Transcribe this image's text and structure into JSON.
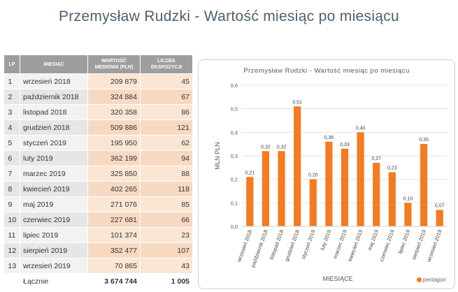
{
  "title": "Przemysław Rudzki - Wartość miesiąc po miesiącu",
  "table": {
    "headers": {
      "lp": "LP",
      "month": "MIESIĄC",
      "value": "WARTOŚĆ MEDIOWA (PLN)",
      "exposures": "LICZBA EKSPOZYCJI"
    },
    "rows": [
      {
        "lp": "1",
        "month": "wrzesień 2018",
        "value": "209 879",
        "exposures": "45"
      },
      {
        "lp": "2",
        "month": "październik 2018",
        "value": "324 884",
        "exposures": "67"
      },
      {
        "lp": "3",
        "month": "listopad 2018",
        "value": "320 358",
        "exposures": "86"
      },
      {
        "lp": "4",
        "month": "grudzień 2018",
        "value": "509 886",
        "exposures": "121"
      },
      {
        "lp": "5",
        "month": "styczeń 2019",
        "value": "195 950",
        "exposures": "62"
      },
      {
        "lp": "6",
        "month": "luty 2019",
        "value": "362 199",
        "exposures": "94"
      },
      {
        "lp": "7",
        "month": "marzec 2019",
        "value": "325 850",
        "exposures": "88"
      },
      {
        "lp": "8",
        "month": "kwiecień 2019",
        "value": "402 265",
        "exposures": "118"
      },
      {
        "lp": "9",
        "month": "maj 2019",
        "value": "271 076",
        "exposures": "85"
      },
      {
        "lp": "10",
        "month": "czerwiec 2019",
        "value": "227 681",
        "exposures": "66"
      },
      {
        "lp": "11",
        "month": "lipiec 2019",
        "value": "101 374",
        "exposures": "23"
      },
      {
        "lp": "12",
        "month": "sierpień 2019",
        "value": "352 477",
        "exposures": "107"
      },
      {
        "lp": "13",
        "month": "wrzesień 2019",
        "value": "70 865",
        "exposures": "43"
      }
    ],
    "total": {
      "label": "Łącznie",
      "value": "3 674 744",
      "exposures": "1 005"
    }
  },
  "chart_data": {
    "type": "bar",
    "title": "Przemysław Rudzki - Wartość miesiąc po miesiącu",
    "xlabel": "MIESIĄCE",
    "ylabel": "MLN PLN",
    "ylim": [
      0,
      0.6
    ],
    "yticks": [
      "0,0",
      "0,1",
      "0,2",
      "0,3",
      "0,4",
      "0,5",
      "0,6"
    ],
    "grid": true,
    "bar_color": "#f47b20",
    "categories": [
      "wrzesień 2018",
      "październik 2018",
      "listopad 2018",
      "grudzień 2018",
      "styczeń 2019",
      "luty 2019",
      "marzec 2019",
      "kwiecień 2019",
      "maj 2019",
      "czerwiec 2019",
      "lipiec 2019",
      "sierpień 2019",
      "wrzesień 2019"
    ],
    "values": [
      0.21,
      0.32,
      0.32,
      0.51,
      0.2,
      0.36,
      0.33,
      0.4,
      0.27,
      0.23,
      0.1,
      0.35,
      0.07
    ],
    "value_labels": [
      "0,21",
      "0,32",
      "0,32",
      "0,51",
      "0,20",
      "0,36",
      "0,33",
      "0,40",
      "0,27",
      "0,23",
      "0,10",
      "0,35",
      "0,07"
    ]
  },
  "logo": {
    "text": "pentagon",
    "icon": "pentagon-logo-icon"
  }
}
